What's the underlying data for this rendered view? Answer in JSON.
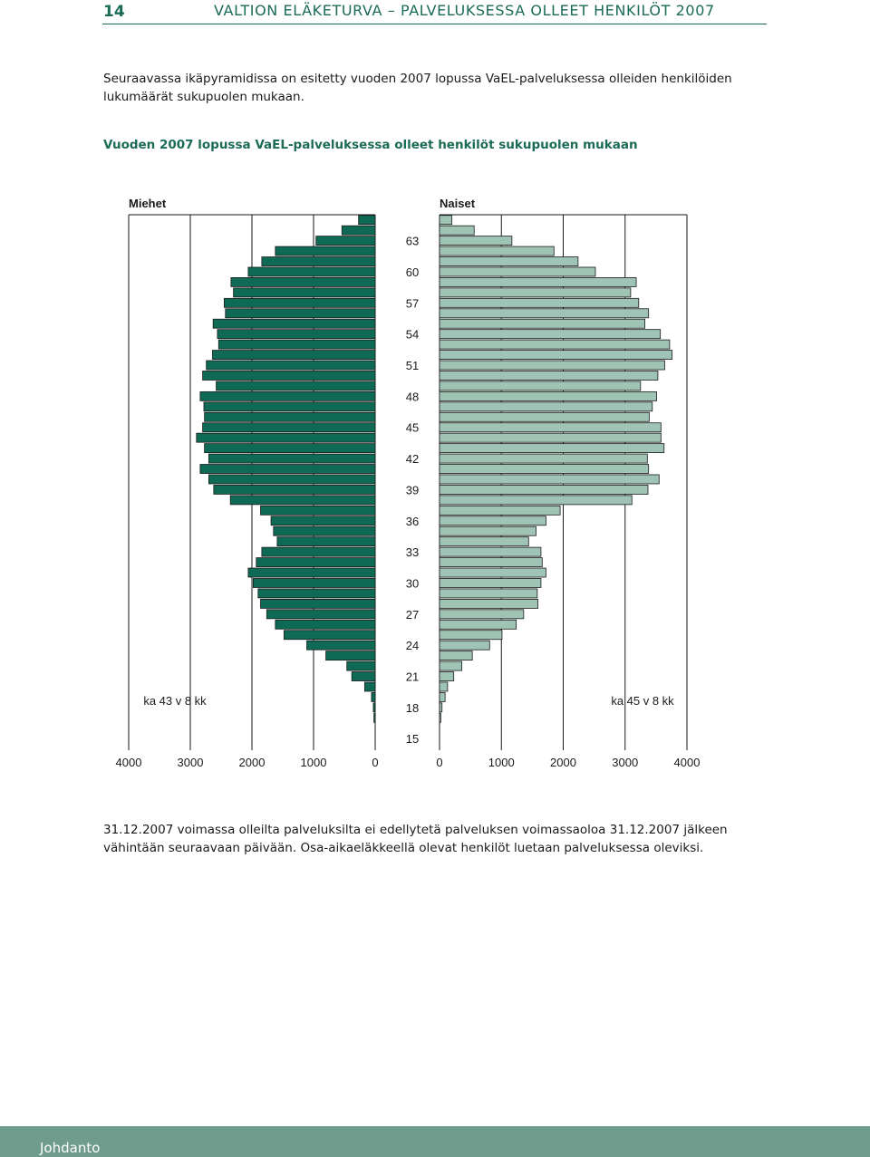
{
  "page": {
    "number": "14",
    "running_header": "VALTION ELÄKETURVA – PALVELUKSESSA OLLEET HENKILÖT 2007",
    "intro": "Seuraavassa ikäpyramidissa on esitetty vuoden 2007 lopussa VaEL-palveluksessa olleiden henkilöiden lukumäärät sukupuolen mukaan.",
    "footnote": "31.12.2007 voimassa olleilta palveluksilta ei edellytetä palveluksen voimassaoloa 31.12.2007 jälkeen vähintään seuraavaan päivään. Osa-aikaeläkkeellä olevat henkilöt luetaan palveluksessa oleviksi.",
    "footer_label": "Johdanto"
  },
  "colors": {
    "men": "#0e6a55",
    "women": "#9fc3b4",
    "accent": "#1b6b57",
    "footer": "#6f9c8c"
  },
  "chart_data": {
    "type": "bar",
    "orientation": "horizontal population pyramid",
    "title": "Vuoden 2007 lopussa VaEL-palveluksessa olleet henkilöt sukupuolen mukaan",
    "men_label": "Miehet",
    "women_label": "Naiset",
    "men_note": "ka 43 v 8 kk",
    "women_note": "ka 45 v 8 kk",
    "age_tick_labels": [
      "63",
      "60",
      "57",
      "54",
      "51",
      "48",
      "45",
      "42",
      "39",
      "36",
      "33",
      "30",
      "27",
      "24",
      "21",
      "18",
      "15"
    ],
    "value_tick_labels_men": [
      "4000",
      "3000",
      "2000",
      "1000",
      "0"
    ],
    "value_tick_labels_women": [
      "0",
      "1000",
      "2000",
      "3000",
      "4000"
    ],
    "xlim": [
      0,
      4000
    ],
    "grid": "vertical gridlines at 1000-step values",
    "ages": [
      65,
      64,
      63,
      62,
      61,
      60,
      59,
      58,
      57,
      56,
      55,
      54,
      53,
      52,
      51,
      50,
      49,
      48,
      47,
      46,
      45,
      44,
      43,
      42,
      41,
      40,
      39,
      38,
      37,
      36,
      35,
      34,
      33,
      32,
      31,
      30,
      29,
      28,
      27,
      26,
      25,
      24,
      23,
      22,
      21,
      20,
      19,
      18,
      17
    ],
    "series": [
      {
        "name": "Miehet",
        "values": [
          270,
          540,
          960,
          1620,
          1840,
          2060,
          2340,
          2300,
          2450,
          2430,
          2630,
          2560,
          2540,
          2640,
          2740,
          2800,
          2580,
          2840,
          2780,
          2770,
          2800,
          2900,
          2770,
          2700,
          2840,
          2700,
          2620,
          2350,
          1860,
          1690,
          1650,
          1590,
          1840,
          1930,
          2060,
          1980,
          1900,
          1860,
          1760,
          1620,
          1480,
          1110,
          800,
          460,
          380,
          170,
          60,
          30,
          20
        ]
      },
      {
        "name": "Naiset",
        "values": [
          200,
          560,
          1170,
          1850,
          2240,
          2520,
          3180,
          3090,
          3220,
          3380,
          3320,
          3570,
          3720,
          3760,
          3640,
          3530,
          3250,
          3510,
          3440,
          3390,
          3580,
          3580,
          3630,
          3360,
          3380,
          3550,
          3370,
          3110,
          1950,
          1720,
          1560,
          1440,
          1640,
          1660,
          1720,
          1640,
          1580,
          1590,
          1360,
          1240,
          1010,
          810,
          530,
          360,
          230,
          130,
          90,
          40,
          20
        ]
      }
    ]
  }
}
